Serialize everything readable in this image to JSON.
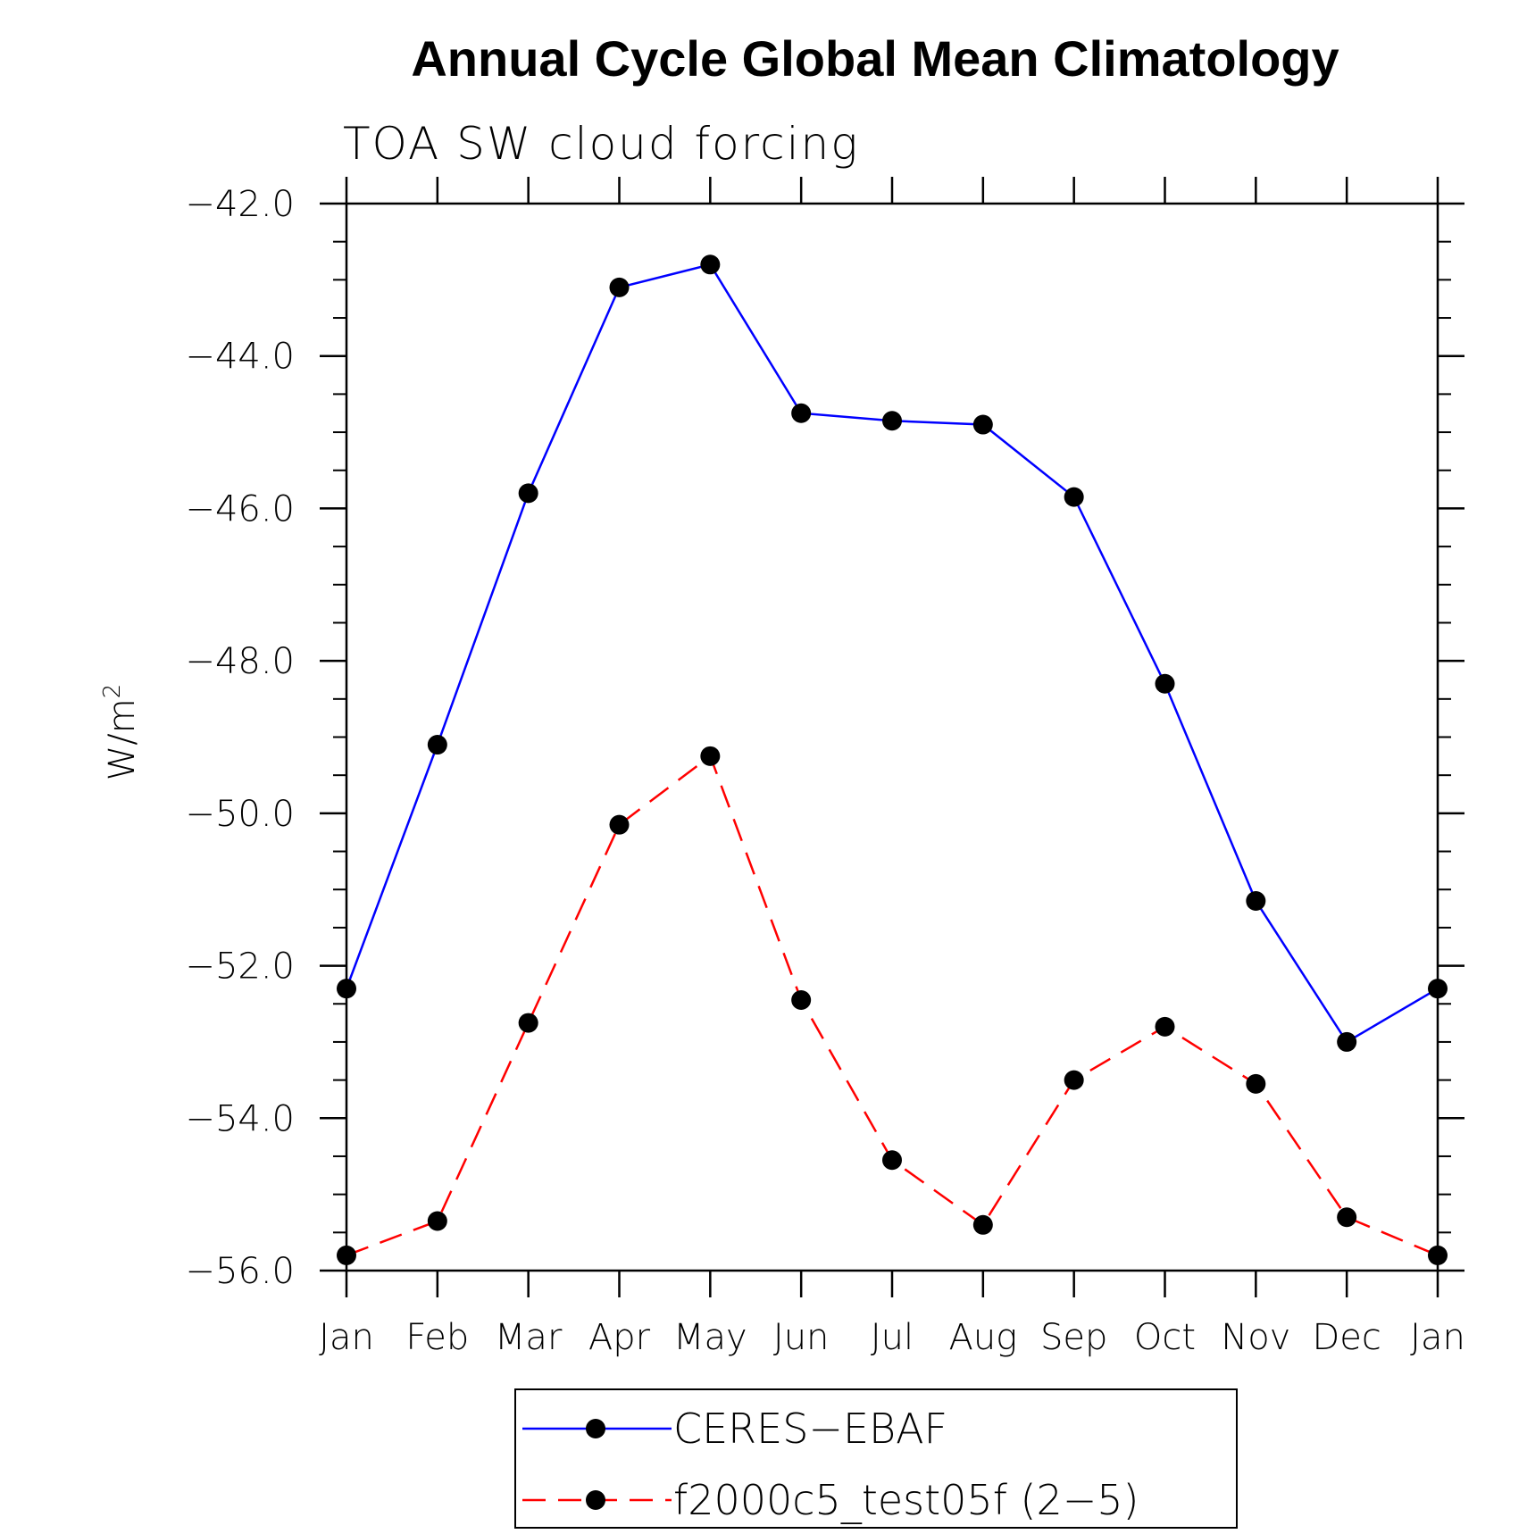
{
  "chart_data": {
    "type": "line",
    "title": "Annual Cycle Global Mean Climatology",
    "subtitle": "TOA SW cloud forcing",
    "ylabel": "W/m",
    "ylabel_superscript": "2",
    "xlabel": "",
    "categories": [
      "Jan",
      "Feb",
      "Mar",
      "Apr",
      "May",
      "Jun",
      "Jul",
      "Aug",
      "Sep",
      "Oct",
      "Nov",
      "Dec",
      "Jan"
    ],
    "ylim": [
      -56.0,
      -42.0
    ],
    "yticks": [
      -42.0,
      -44.0,
      -46.0,
      -48.0,
      -50.0,
      -52.0,
      -54.0,
      -56.0
    ],
    "ytick_labels": [
      "−42.0",
      "−44.0",
      "−46.0",
      "−48.0",
      "−50.0",
      "−52.0",
      "−54.0",
      "−56.0"
    ],
    "grid": false,
    "legend_position": "bottom",
    "series": [
      {
        "name": "CERES−EBAF",
        "color": "#0000ff",
        "dash": "solid",
        "marker": "filled-circle",
        "values": [
          -52.3,
          -49.1,
          -45.8,
          -43.1,
          -42.8,
          -44.75,
          -44.85,
          -44.9,
          -45.85,
          -48.3,
          -51.15,
          -53.0,
          -52.3
        ]
      },
      {
        "name": "f2000c5_test05f (2−5)",
        "color": "#ff0000",
        "dash": "dashed",
        "marker": "filled-circle",
        "values": [
          -55.8,
          -55.35,
          -52.75,
          -50.15,
          -49.25,
          -52.45,
          -54.55,
          -55.4,
          -53.5,
          -52.8,
          -53.55,
          -55.3,
          -55.8
        ]
      }
    ]
  }
}
